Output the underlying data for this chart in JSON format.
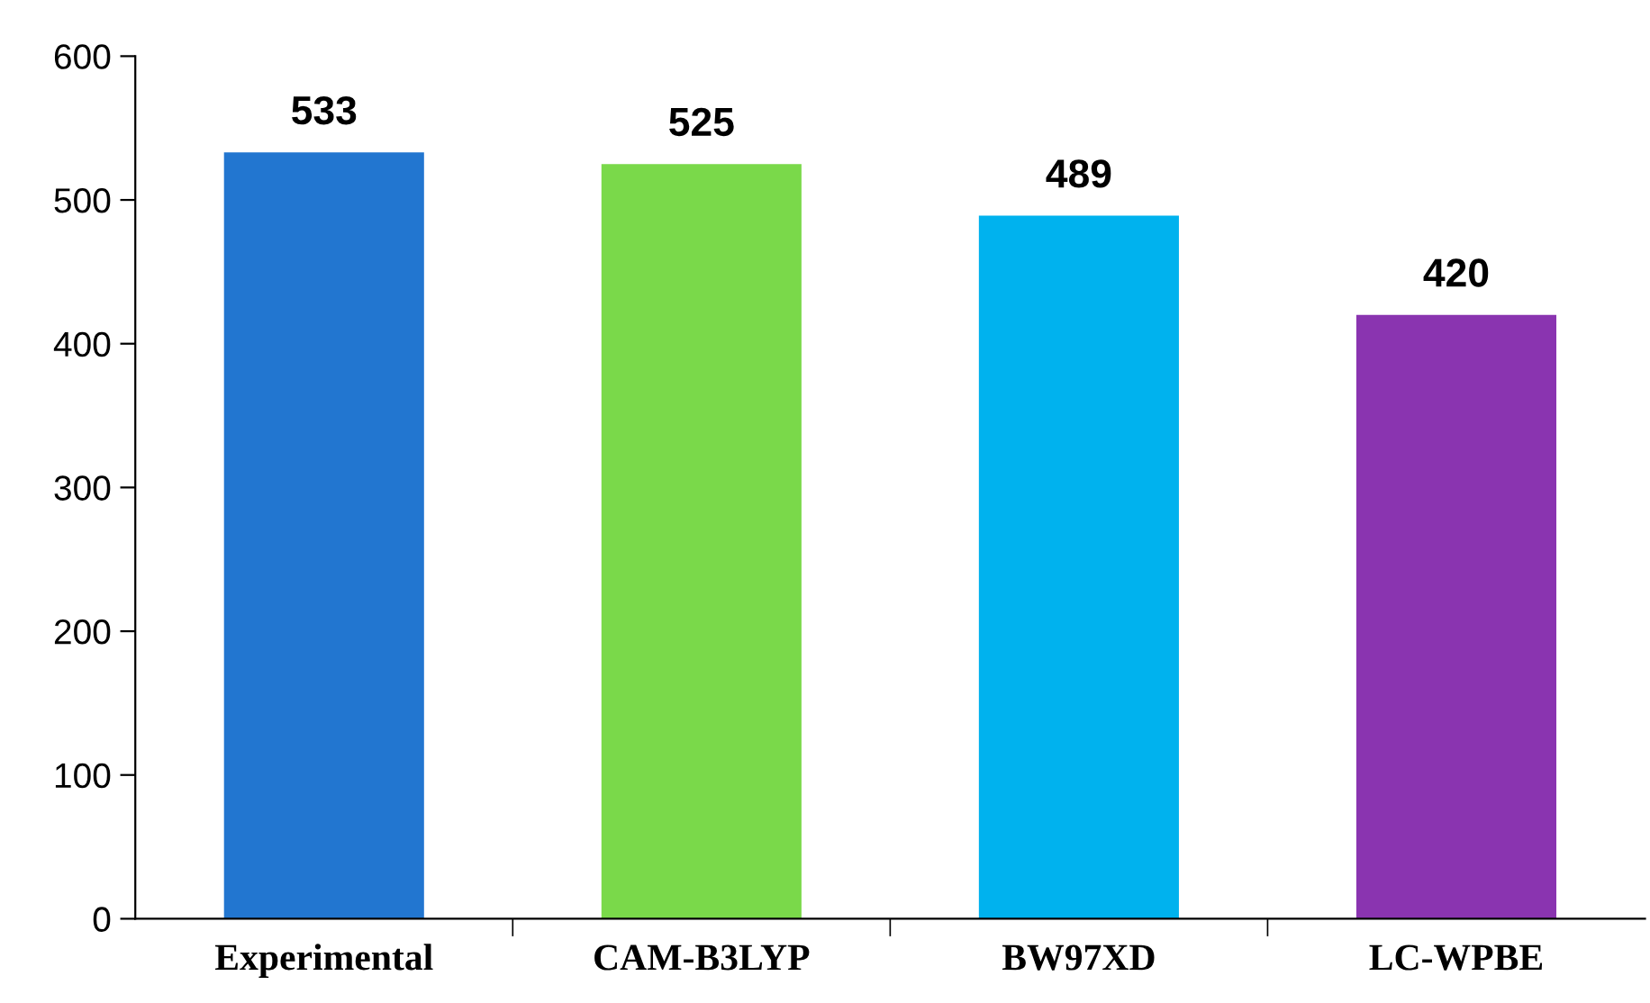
{
  "chart_data": {
    "type": "bar",
    "categories": [
      "Experimental",
      "CAM-B3LYP",
      "BW97XD",
      "LC-WPBE"
    ],
    "values": [
      533,
      525,
      489,
      420
    ],
    "colors": [
      "#2276d0",
      "#7ad94a",
      "#00b2ee",
      "#8a34b0"
    ],
    "ylim": [
      0,
      600
    ],
    "yticks": [
      0,
      100,
      200,
      300,
      400,
      500,
      600
    ],
    "data_labels": true,
    "grid": false,
    "legend": false
  }
}
